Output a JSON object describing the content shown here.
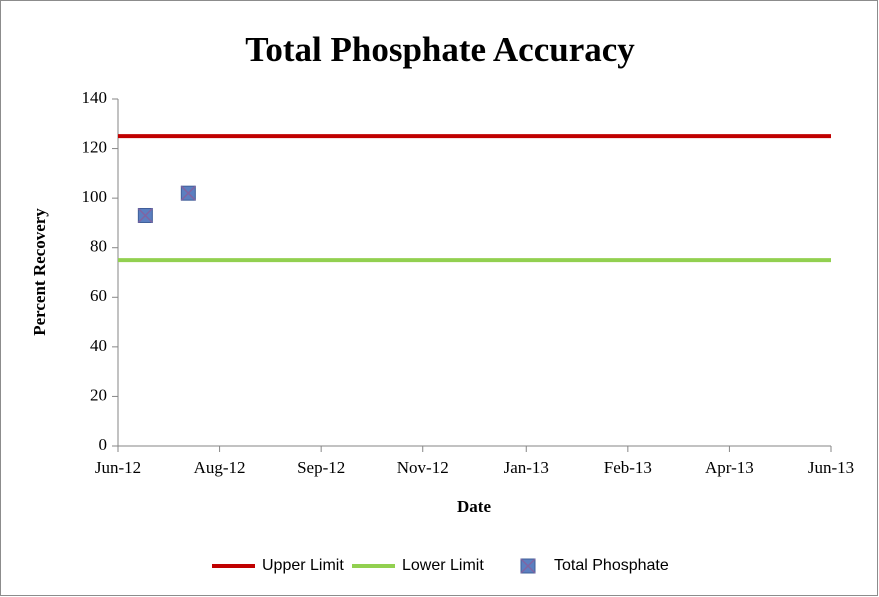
{
  "chart_data": {
    "type": "scatter",
    "title": "Total Phosphate Accuracy",
    "x_label": "Date",
    "y_label": "Percent Recovery",
    "xlim": [
      41061,
      41426
    ],
    "xticks": [
      {
        "value": 41061,
        "label": "Jun-12"
      },
      {
        "value": 41113,
        "label": "Aug-12"
      },
      {
        "value": 41165,
        "label": "Sep-12"
      },
      {
        "value": 41217,
        "label": "Nov-12"
      },
      {
        "value": 41270,
        "label": "Jan-13"
      },
      {
        "value": 41322,
        "label": "Feb-13"
      },
      {
        "value": 41374,
        "label": "Apr-13"
      },
      {
        "value": 41426,
        "label": "Jun-13"
      }
    ],
    "ylim": [
      0,
      140
    ],
    "yticks": [
      0,
      20,
      40,
      60,
      80,
      100,
      120,
      140
    ],
    "grid": false,
    "legend": "bottom",
    "series": [
      {
        "name": "Upper Limit",
        "color": "#c00000",
        "style": "line",
        "x": [
          41061,
          41426
        ],
        "values": [
          125,
          125
        ]
      },
      {
        "name": "Lower Limit",
        "color": "#92d050",
        "style": "line",
        "x": [
          41061,
          41426
        ],
        "values": [
          75,
          75
        ]
      },
      {
        "name": "Total Phosphate",
        "color": "#5b7fc0",
        "style": "marker",
        "x": [
          41075,
          41097
        ],
        "values": [
          93,
          102
        ]
      }
    ]
  }
}
